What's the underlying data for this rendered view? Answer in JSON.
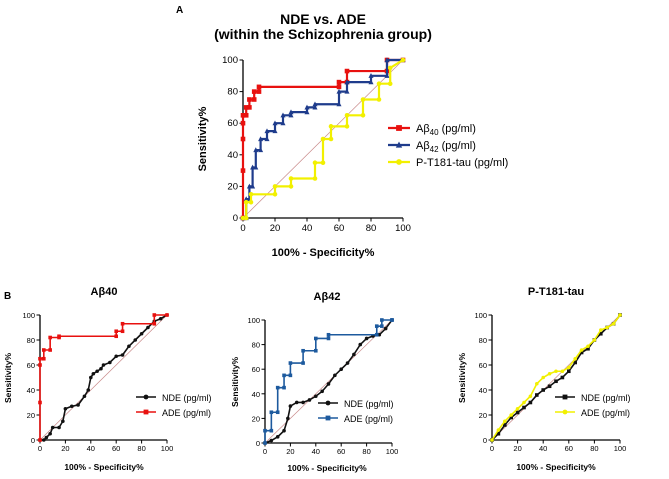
{
  "panel_a_letter": "A",
  "panel_b_letter": "B",
  "chart_data": [
    {
      "id": "A",
      "type": "line",
      "title": "NDE vs. ADE",
      "subtitle": "(within the  Schizophrenia group)",
      "xlabel": "100% - Specificity%",
      "ylabel": "Sensitivity%",
      "xlim": [
        0,
        100
      ],
      "ylim": [
        0,
        100
      ],
      "xticks": [
        "0",
        "20",
        "40",
        "60",
        "80",
        "100"
      ],
      "yticks": [
        "0",
        "20",
        "40",
        "60",
        "80",
        "100"
      ],
      "legend_position": "right",
      "diagonal_reference": true,
      "series": [
        {
          "name": "Aβ40 (pg/ml)",
          "legend_main": "Aβ",
          "legend_sub": "40",
          "legend_unit": " (pg/ml)",
          "color": "#e8110f",
          "marker": "square",
          "x": [
            0,
            0,
            0,
            0,
            0,
            2,
            2,
            4,
            4,
            7,
            7,
            10,
            10,
            60,
            60,
            65,
            65,
            90,
            90,
            100
          ],
          "y": [
            0,
            30,
            50,
            60,
            65,
            65,
            70,
            70,
            75,
            75,
            80,
            80,
            83,
            83,
            86,
            86,
            93,
            93,
            100,
            100
          ]
        },
        {
          "name": "Aβ42 (pg/ml)",
          "legend_main": "Aβ",
          "legend_sub": "42",
          "legend_unit": " (pg/ml)",
          "color": "#1f3c8c",
          "marker": "triangle",
          "x": [
            0,
            2,
            2,
            4,
            4,
            6,
            6,
            8,
            8,
            11,
            11,
            15,
            15,
            20,
            20,
            25,
            25,
            30,
            30,
            40,
            40,
            45,
            45,
            60,
            60,
            65,
            65,
            80,
            80,
            90,
            90,
            100
          ],
          "y": [
            0,
            0,
            12,
            12,
            20,
            20,
            32,
            32,
            43,
            43,
            50,
            50,
            55,
            55,
            60,
            60,
            65,
            65,
            67,
            67,
            70,
            70,
            72,
            72,
            80,
            80,
            86,
            86,
            90,
            90,
            100,
            100
          ]
        },
        {
          "name": "P-T181-tau (pg/ml)",
          "legend_main": "P-T181-tau (pg/ml)",
          "legend_sub": "",
          "legend_unit": "",
          "color": "#f2f000",
          "marker": "circle",
          "x": [
            0,
            2,
            2,
            5,
            5,
            20,
            20,
            30,
            30,
            45,
            45,
            50,
            50,
            55,
            55,
            65,
            65,
            75,
            75,
            85,
            85,
            92,
            92,
            100
          ],
          "y": [
            0,
            0,
            10,
            10,
            15,
            15,
            20,
            20,
            25,
            25,
            35,
            35,
            50,
            50,
            58,
            58,
            65,
            65,
            75,
            75,
            85,
            85,
            95,
            100
          ]
        }
      ]
    },
    {
      "id": "B1",
      "type": "line",
      "title": "Aβ40",
      "xlabel": "100% - Specificity%",
      "ylabel": "Sensitivity%",
      "xlim": [
        0,
        100
      ],
      "ylim": [
        0,
        100
      ],
      "xticks": [
        "0",
        "20",
        "40",
        "60",
        "80",
        "100"
      ],
      "yticks": [
        "0",
        "20",
        "40",
        "60",
        "80",
        "100"
      ],
      "legend_position": "lower-right",
      "diagonal_reference": true,
      "series": [
        {
          "name": "NDE (pg/ml)",
          "color": "#111111",
          "marker": "circle",
          "x": [
            0,
            3,
            5,
            8,
            10,
            15,
            18,
            20,
            25,
            30,
            35,
            38,
            40,
            42,
            45,
            48,
            50,
            55,
            60,
            65,
            70,
            75,
            80,
            85,
            90,
            95,
            100
          ],
          "y": [
            0,
            0,
            2,
            5,
            10,
            10,
            15,
            25,
            27,
            28,
            35,
            40,
            50,
            53,
            55,
            57,
            60,
            62,
            67,
            68,
            75,
            80,
            85,
            90,
            95,
            97,
            100
          ]
        },
        {
          "name": "ADE (pg/ml)",
          "color": "#e8110f",
          "marker": "square",
          "x": [
            0,
            0,
            0,
            0,
            3,
            3,
            8,
            8,
            15,
            15,
            60,
            60,
            65,
            65,
            90,
            90,
            100
          ],
          "y": [
            0,
            30,
            60,
            65,
            65,
            72,
            72,
            82,
            82,
            83,
            83,
            87,
            87,
            93,
            93,
            100,
            100
          ]
        }
      ]
    },
    {
      "id": "B2",
      "type": "line",
      "title": "Aβ42",
      "xlabel": "100% - Specificity%",
      "ylabel": "Sensitivity%",
      "xlim": [
        0,
        100
      ],
      "ylim": [
        0,
        100
      ],
      "xticks": [
        "0",
        "20",
        "40",
        "60",
        "80",
        "100"
      ],
      "yticks": [
        "0",
        "20",
        "40",
        "60",
        "80",
        "100"
      ],
      "legend_position": "lower-right",
      "diagonal_reference": true,
      "series": [
        {
          "name": "NDE (pg/ml)",
          "color": "#111111",
          "marker": "circle",
          "x": [
            0,
            5,
            10,
            15,
            18,
            20,
            25,
            30,
            35,
            40,
            45,
            50,
            55,
            60,
            65,
            70,
            75,
            80,
            85,
            90,
            95,
            100
          ],
          "y": [
            0,
            2,
            5,
            10,
            20,
            30,
            33,
            33,
            35,
            38,
            42,
            48,
            55,
            60,
            65,
            72,
            80,
            85,
            87,
            88,
            93,
            100
          ],
          "_note": "values read approx"
        },
        {
          "name": "ADE (pg/ml)",
          "color": "#1d5a9e",
          "marker": "square",
          "x": [
            0,
            0,
            5,
            5,
            10,
            10,
            15,
            15,
            20,
            20,
            30,
            30,
            40,
            40,
            50,
            50,
            88,
            88,
            92,
            92,
            100,
            100
          ],
          "y": [
            0,
            10,
            10,
            25,
            25,
            45,
            45,
            55,
            55,
            65,
            65,
            75,
            75,
            85,
            85,
            88,
            88,
            95,
            95,
            100,
            100,
            100
          ]
        }
      ]
    },
    {
      "id": "B3",
      "type": "line",
      "title": "P-T181-tau",
      "xlabel": "100% - Specificity%",
      "ylabel": "Sensitivity%",
      "xlim": [
        0,
        100
      ],
      "ylim": [
        0,
        100
      ],
      "xticks": [
        "0",
        "20",
        "40",
        "60",
        "80",
        "100"
      ],
      "yticks": [
        "0",
        "20",
        "40",
        "60",
        "80",
        "100"
      ],
      "legend_position": "lower-right",
      "diagonal_reference": true,
      "series": [
        {
          "name": "NDE (pg/ml)",
          "color": "#111111",
          "marker": "square",
          "x": [
            0,
            5,
            10,
            15,
            20,
            25,
            30,
            35,
            40,
            45,
            50,
            55,
            60,
            65,
            70,
            75,
            80,
            85,
            90,
            95,
            100
          ],
          "y": [
            0,
            5,
            12,
            18,
            22,
            26,
            30,
            36,
            40,
            43,
            47,
            50,
            55,
            62,
            70,
            73,
            80,
            85,
            90,
            93,
            100
          ]
        },
        {
          "name": "ADE (pg/ml)",
          "color": "#f2f000",
          "marker": "circle",
          "x": [
            0,
            5,
            10,
            15,
            20,
            25,
            30,
            35,
            40,
            45,
            50,
            55,
            60,
            65,
            70,
            75,
            80,
            85,
            90,
            95,
            100
          ],
          "y": [
            0,
            8,
            15,
            20,
            25,
            30,
            35,
            45,
            50,
            53,
            55,
            55,
            58,
            65,
            72,
            75,
            80,
            88,
            90,
            93,
            100
          ]
        }
      ]
    }
  ]
}
